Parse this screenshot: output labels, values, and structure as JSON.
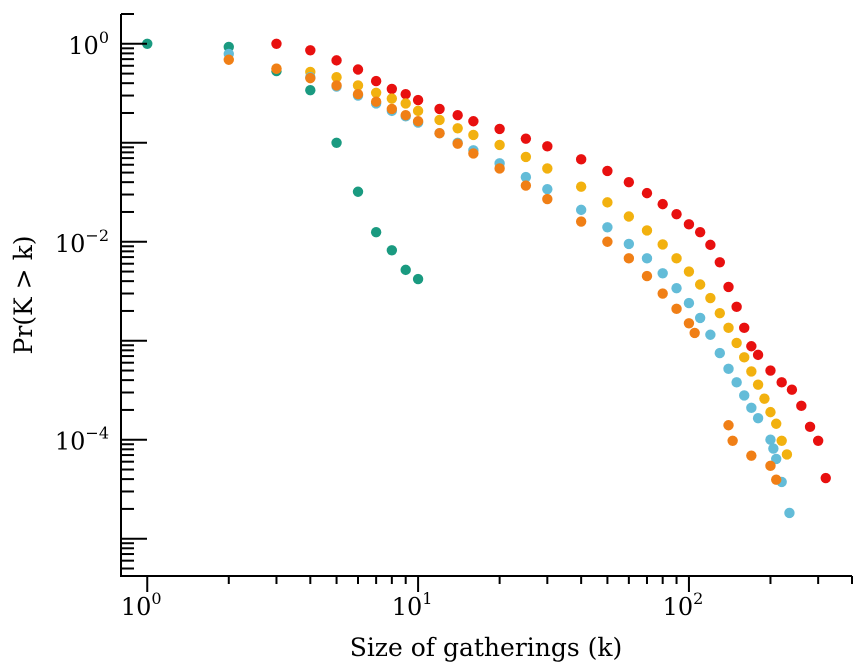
{
  "chart_data": {
    "type": "scatter",
    "title": "",
    "xlabel": "Size of gatherings (k)",
    "ylabel": "Pr(K > k)",
    "xscale": "log",
    "yscale": "log",
    "xlim": [
      0.8,
      400
    ],
    "ylim": [
      4.2e-06,
      2
    ],
    "grid": false,
    "x_ticks": [
      {
        "value": 1,
        "base": "10",
        "exp": "0"
      },
      {
        "value": 10,
        "base": "10",
        "exp": "1"
      },
      {
        "value": 100,
        "base": "10",
        "exp": "2"
      }
    ],
    "y_ticks": [
      {
        "value": 1,
        "base": "10",
        "exp": "0"
      },
      {
        "value": 0.01,
        "base": "10",
        "exp": "−2"
      },
      {
        "value": 0.0001,
        "base": "10",
        "exp": "−4"
      }
    ],
    "series": [
      {
        "color": "#1a9a80",
        "points": [
          [
            1,
            1
          ],
          [
            2,
            0.93
          ],
          [
            3,
            0.53
          ],
          [
            4,
            0.34
          ],
          [
            5,
            0.1
          ],
          [
            6,
            0.032
          ],
          [
            7,
            0.0125
          ],
          [
            8,
            0.0082
          ],
          [
            9,
            0.0052
          ],
          [
            10,
            0.0042
          ]
        ]
      },
      {
        "color": "#e8100f",
        "points": [
          [
            3,
            1
          ],
          [
            4,
            0.86
          ],
          [
            5,
            0.68
          ],
          [
            6,
            0.55
          ],
          [
            7,
            0.42
          ],
          [
            8,
            0.35
          ],
          [
            9,
            0.31
          ],
          [
            10,
            0.27
          ],
          [
            12,
            0.22
          ],
          [
            14,
            0.19
          ],
          [
            16,
            0.165
          ],
          [
            20,
            0.138
          ],
          [
            25,
            0.11
          ],
          [
            30,
            0.092
          ],
          [
            40,
            0.068
          ],
          [
            50,
            0.052
          ],
          [
            60,
            0.04
          ],
          [
            70,
            0.031
          ],
          [
            80,
            0.024
          ],
          [
            90,
            0.019
          ],
          [
            100,
            0.015
          ],
          [
            110,
            0.0125
          ],
          [
            120,
            0.0093
          ],
          [
            130,
            0.0062
          ],
          [
            140,
            0.0035
          ],
          [
            150,
            0.0022
          ],
          [
            160,
            0.00135
          ],
          [
            170,
            0.00088
          ],
          [
            180,
            0.00072
          ],
          [
            200,
            0.0005
          ],
          [
            220,
            0.00038
          ],
          [
            240,
            0.00032
          ],
          [
            260,
            0.00022
          ],
          [
            280,
            0.000135
          ],
          [
            300,
            9.75e-05
          ],
          [
            320,
            4.1e-05
          ]
        ]
      },
      {
        "color": "#f2b10f",
        "points": [
          [
            3,
            0.56
          ],
          [
            4,
            0.52
          ],
          [
            5,
            0.46
          ],
          [
            6,
            0.38
          ],
          [
            7,
            0.32
          ],
          [
            8,
            0.28
          ],
          [
            9,
            0.25
          ],
          [
            10,
            0.21
          ],
          [
            12,
            0.17
          ],
          [
            14,
            0.14
          ],
          [
            16,
            0.12
          ],
          [
            20,
            0.095
          ],
          [
            25,
            0.072
          ],
          [
            30,
            0.055
          ],
          [
            40,
            0.036
          ],
          [
            50,
            0.025
          ],
          [
            60,
            0.018
          ],
          [
            70,
            0.013
          ],
          [
            80,
            0.0094
          ],
          [
            90,
            0.0068
          ],
          [
            100,
            0.005
          ],
          [
            110,
            0.0037
          ],
          [
            120,
            0.0027
          ],
          [
            130,
            0.0019
          ],
          [
            140,
            0.00135
          ],
          [
            150,
            0.00095
          ],
          [
            160,
            0.00068
          ],
          [
            170,
            0.00049
          ],
          [
            180,
            0.00036
          ],
          [
            190,
            0.00026
          ],
          [
            200,
            0.00019
          ],
          [
            210,
            0.000145
          ],
          [
            220,
            9.75e-05
          ],
          [
            230,
            7.1e-05
          ]
        ]
      },
      {
        "color": "#63bcd8",
        "points": [
          [
            2,
            0.79
          ],
          [
            4,
            0.46
          ],
          [
            5,
            0.37
          ],
          [
            6,
            0.3
          ],
          [
            7,
            0.25
          ],
          [
            8,
            0.21
          ],
          [
            9,
            0.185
          ],
          [
            10,
            0.16
          ],
          [
            12,
            0.125
          ],
          [
            14,
            0.1
          ],
          [
            16,
            0.084
          ],
          [
            20,
            0.062
          ],
          [
            25,
            0.045
          ],
          [
            30,
            0.034
          ],
          [
            40,
            0.021
          ],
          [
            50,
            0.014
          ],
          [
            60,
            0.0095
          ],
          [
            70,
            0.0068
          ],
          [
            80,
            0.0048
          ],
          [
            90,
            0.0034
          ],
          [
            100,
            0.0024
          ],
          [
            110,
            0.0017
          ],
          [
            120,
            0.00115
          ],
          [
            130,
            0.00075
          ],
          [
            140,
            0.00052
          ],
          [
            150,
            0.00038
          ],
          [
            160,
            0.00028
          ],
          [
            170,
            0.00021
          ],
          [
            180,
            0.000165
          ],
          [
            200,
            0.0001
          ],
          [
            205,
            8.15e-05
          ],
          [
            210,
            6.4e-05
          ],
          [
            220,
            3.75e-05
          ],
          [
            235,
            1.82e-05
          ]
        ]
      },
      {
        "color": "#f07f16",
        "points": [
          [
            2,
            0.69
          ],
          [
            3,
            0.56
          ],
          [
            4,
            0.45
          ],
          [
            5,
            0.38
          ],
          [
            6,
            0.31
          ],
          [
            7,
            0.26
          ],
          [
            8,
            0.22
          ],
          [
            9,
            0.19
          ],
          [
            10,
            0.165
          ],
          [
            12,
            0.125
          ],
          [
            14,
            0.098
          ],
          [
            16,
            0.078
          ],
          [
            20,
            0.055
          ],
          [
            25,
            0.037
          ],
          [
            30,
            0.027
          ],
          [
            40,
            0.016
          ],
          [
            50,
            0.01
          ],
          [
            60,
            0.0068
          ],
          [
            70,
            0.0045
          ],
          [
            80,
            0.003
          ],
          [
            90,
            0.0021
          ],
          [
            100,
            0.0015
          ],
          [
            105,
            0.0012
          ],
          [
            140,
            0.00014
          ],
          [
            145,
            9.75e-05
          ],
          [
            170,
            6.9e-05
          ],
          [
            200,
            5.45e-05
          ],
          [
            210,
            3.95e-05
          ]
        ]
      }
    ]
  }
}
